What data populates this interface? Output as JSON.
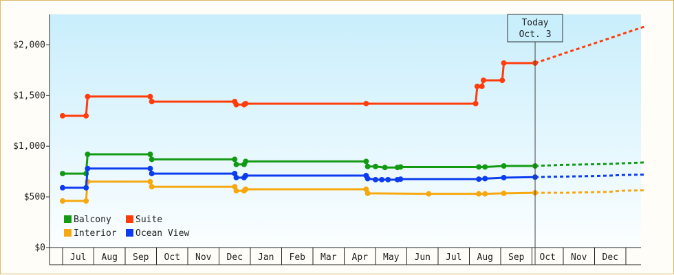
{
  "chart_data": {
    "type": "line",
    "title": "",
    "xlabel": "",
    "ylabel": "",
    "ylim": [
      0,
      2300
    ],
    "y_ticks": [
      {
        "value": 0,
        "label": "$0"
      },
      {
        "value": 500,
        "label": "$500"
      },
      {
        "value": 1000,
        "label": "$1,000"
      },
      {
        "value": 1500,
        "label": "$1,500"
      },
      {
        "value": 2000,
        "label": "$2,000"
      }
    ],
    "months": [
      "Jul",
      "Aug",
      "Sep",
      "Oct",
      "Nov",
      "Dec",
      "Jan",
      "Feb",
      "Mar",
      "Apr",
      "May",
      "Jun",
      "Jul",
      "Aug",
      "Sep",
      "Oct",
      "Nov",
      "Dec"
    ],
    "today": {
      "line1": "Today",
      "line2": "Oct. 3",
      "month_pos": 14.6
    },
    "legend": {
      "placement": "bottom-left"
    },
    "series": [
      {
        "name": "Balcony",
        "color": "#139a13",
        "points": [
          [
            -0.5,
            730
          ],
          [
            0.25,
            730
          ],
          [
            0.3,
            920
          ],
          [
            2.3,
            920
          ],
          [
            2.35,
            870
          ],
          [
            5,
            870
          ],
          [
            5.05,
            820
          ],
          [
            5.3,
            820
          ],
          [
            5.35,
            850
          ],
          [
            9.2,
            850
          ],
          [
            9.25,
            800
          ],
          [
            9.5,
            800
          ],
          [
            9.8,
            790
          ],
          [
            10.2,
            790
          ],
          [
            10.3,
            795
          ],
          [
            12.8,
            795
          ],
          [
            13,
            795
          ],
          [
            13.6,
            805
          ],
          [
            14.6,
            805
          ]
        ],
        "markers": [
          [
            -0.5,
            730
          ],
          [
            0.25,
            730
          ],
          [
            0.3,
            920
          ],
          [
            2.3,
            920
          ],
          [
            2.35,
            870
          ],
          [
            5,
            870
          ],
          [
            5.05,
            820
          ],
          [
            5.3,
            820
          ],
          [
            5.35,
            850
          ],
          [
            9.2,
            850
          ],
          [
            9.25,
            800
          ],
          [
            9.5,
            800
          ],
          [
            9.8,
            790
          ],
          [
            10.2,
            790
          ],
          [
            10.3,
            795
          ],
          [
            12.8,
            795
          ],
          [
            13,
            795
          ],
          [
            13.6,
            805
          ],
          [
            14.6,
            805
          ]
        ],
        "forecast": [
          [
            14.6,
            805
          ],
          [
            15.4,
            815
          ],
          [
            16.2,
            820
          ],
          [
            17,
            825
          ],
          [
            17.3,
            830
          ],
          [
            18.1,
            840
          ]
        ]
      },
      {
        "name": "Suite",
        "color": "#ff3c0a",
        "points": [
          [
            -0.5,
            1300
          ],
          [
            0.25,
            1300
          ],
          [
            0.3,
            1490
          ],
          [
            2.3,
            1490
          ],
          [
            2.35,
            1440
          ],
          [
            5,
            1440
          ],
          [
            5.05,
            1410
          ],
          [
            5.3,
            1410
          ],
          [
            5.35,
            1420
          ],
          [
            9.2,
            1420
          ],
          [
            12.7,
            1420
          ],
          [
            12.75,
            1590
          ],
          [
            12.9,
            1590
          ],
          [
            12.95,
            1650
          ],
          [
            13.55,
            1650
          ],
          [
            13.6,
            1820
          ],
          [
            14.6,
            1820
          ]
        ],
        "markers": [
          [
            -0.5,
            1300
          ],
          [
            0.25,
            1300
          ],
          [
            0.3,
            1490
          ],
          [
            2.3,
            1490
          ],
          [
            2.35,
            1440
          ],
          [
            5,
            1440
          ],
          [
            5.05,
            1410
          ],
          [
            5.3,
            1410
          ],
          [
            5.35,
            1420
          ],
          [
            9.2,
            1420
          ],
          [
            12.7,
            1420
          ],
          [
            12.75,
            1590
          ],
          [
            12.9,
            1590
          ],
          [
            12.95,
            1650
          ],
          [
            13.55,
            1650
          ],
          [
            13.6,
            1820
          ],
          [
            14.6,
            1820
          ]
        ],
        "forecast": [
          [
            14.6,
            1820
          ],
          [
            18.1,
            2180
          ]
        ]
      },
      {
        "name": "Interior",
        "color": "#f7a80f",
        "points": [
          [
            -0.5,
            460
          ],
          [
            0.25,
            460
          ],
          [
            0.3,
            650
          ],
          [
            2.3,
            650
          ],
          [
            2.35,
            600
          ],
          [
            5,
            600
          ],
          [
            5.05,
            560
          ],
          [
            5.3,
            560
          ],
          [
            5.35,
            575
          ],
          [
            9.2,
            575
          ],
          [
            9.25,
            535
          ],
          [
            11.2,
            530
          ],
          [
            12.8,
            530
          ],
          [
            13,
            530
          ],
          [
            13.6,
            535
          ],
          [
            14.6,
            540
          ]
        ],
        "markers": [
          [
            -0.5,
            460
          ],
          [
            0.25,
            460
          ],
          [
            0.3,
            650
          ],
          [
            2.3,
            650
          ],
          [
            2.35,
            600
          ],
          [
            5,
            600
          ],
          [
            5.05,
            560
          ],
          [
            5.3,
            560
          ],
          [
            5.35,
            575
          ],
          [
            9.2,
            575
          ],
          [
            9.25,
            535
          ],
          [
            11.2,
            530
          ],
          [
            12.8,
            530
          ],
          [
            13,
            530
          ],
          [
            13.6,
            535
          ],
          [
            14.6,
            540
          ]
        ],
        "forecast": [
          [
            14.6,
            540
          ],
          [
            15.5,
            540
          ],
          [
            16.3,
            545
          ],
          [
            17,
            550
          ],
          [
            17.3,
            560
          ],
          [
            18.1,
            565
          ]
        ]
      },
      {
        "name": "Ocean View",
        "color": "#0b3cf0",
        "points": [
          [
            -0.5,
            590
          ],
          [
            0.25,
            590
          ],
          [
            0.3,
            780
          ],
          [
            2.3,
            780
          ],
          [
            2.35,
            730
          ],
          [
            5,
            730
          ],
          [
            5.05,
            690
          ],
          [
            5.3,
            690
          ],
          [
            5.35,
            710
          ],
          [
            9.2,
            710
          ],
          [
            9.25,
            680
          ],
          [
            9.5,
            670
          ],
          [
            9.7,
            670
          ],
          [
            9.9,
            670
          ],
          [
            10.2,
            670
          ],
          [
            10.3,
            675
          ],
          [
            12.8,
            675
          ],
          [
            13,
            680
          ],
          [
            13.6,
            690
          ],
          [
            14.6,
            695
          ]
        ],
        "markers": [
          [
            -0.5,
            590
          ],
          [
            0.25,
            590
          ],
          [
            0.3,
            780
          ],
          [
            2.3,
            780
          ],
          [
            2.35,
            730
          ],
          [
            5,
            730
          ],
          [
            5.05,
            690
          ],
          [
            5.3,
            690
          ],
          [
            5.35,
            710
          ],
          [
            9.2,
            710
          ],
          [
            9.25,
            680
          ],
          [
            9.5,
            670
          ],
          [
            9.7,
            670
          ],
          [
            9.9,
            670
          ],
          [
            10.2,
            670
          ],
          [
            10.3,
            675
          ],
          [
            12.8,
            675
          ],
          [
            13,
            680
          ],
          [
            13.6,
            690
          ],
          [
            14.6,
            695
          ]
        ],
        "forecast": [
          [
            14.6,
            695
          ],
          [
            15.5,
            700
          ],
          [
            16.3,
            705
          ],
          [
            17,
            710
          ],
          [
            17.3,
            715
          ],
          [
            18.1,
            720
          ]
        ]
      }
    ]
  }
}
